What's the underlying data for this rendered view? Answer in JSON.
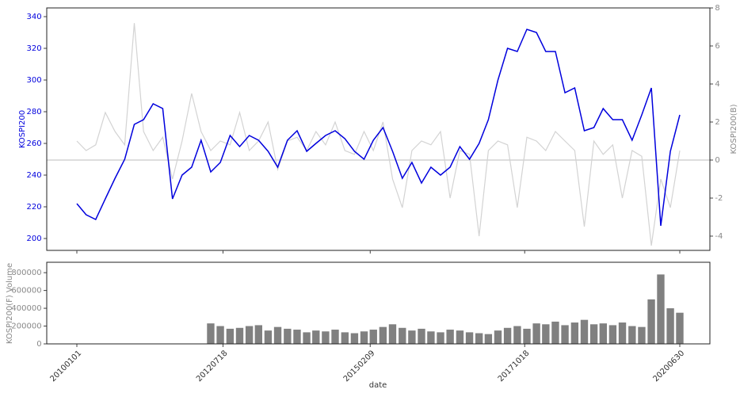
{
  "chart_data": [
    {
      "type": "line",
      "y_label": "KOSPI200",
      "y2_label": "KOSPI200(B)",
      "x": [
        "20100101",
        "20100301",
        "20100501",
        "20100701",
        "20100901",
        "20101101",
        "20110101",
        "20110301",
        "20110501",
        "20110701",
        "20110901",
        "20111101",
        "20120101",
        "20120301",
        "20120501",
        "20120701",
        "20120901",
        "20121101",
        "20130101",
        "20130301",
        "20130501",
        "20130701",
        "20130901",
        "20131101",
        "20140101",
        "20140301",
        "20140501",
        "20140701",
        "20140901",
        "20141101",
        "20150101",
        "20150301",
        "20150501",
        "20150701",
        "20150901",
        "20151101",
        "20160101",
        "20160301",
        "20160501",
        "20160701",
        "20160901",
        "20161101",
        "20170101",
        "20170301",
        "20170501",
        "20170701",
        "20170901",
        "20171101",
        "20180101",
        "20180301",
        "20180501",
        "20180701",
        "20180901",
        "20181101",
        "20190101",
        "20190301",
        "20190501",
        "20190701",
        "20190901",
        "20191101",
        "20200101",
        "20200301",
        "20200501",
        "20200630"
      ],
      "series": [
        {
          "color": "#0000dd",
          "values": [
            222,
            215,
            212,
            225,
            238,
            250,
            272,
            275,
            285,
            282,
            225,
            240,
            245,
            262,
            242,
            248,
            265,
            258,
            265,
            262,
            255,
            245,
            262,
            268,
            255,
            260,
            265,
            268,
            263,
            255,
            250,
            262,
            270,
            255,
            238,
            248,
            235,
            245,
            240,
            245,
            258,
            250,
            260,
            275,
            300,
            320,
            318,
            332,
            330,
            318,
            318,
            292,
            295,
            268,
            270,
            282,
            275,
            275,
            262,
            278,
            295,
            208,
            255,
            278
          ]
        },
        {
          "color": "#d3d3d3",
          "axis": "y2",
          "values": [
            1.0,
            0.5,
            0.8,
            2.5,
            1.5,
            0.8,
            7.2,
            1.5,
            0.5,
            1.2,
            -1.0,
            1.0,
            3.5,
            1.5,
            0.5,
            1.0,
            0.8,
            2.5,
            0.5,
            1.0,
            2.0,
            -0.5,
            1.0,
            1.2,
            0.5,
            1.5,
            0.8,
            2.0,
            0.5,
            0.3,
            1.5,
            0.5,
            2.0,
            -1.0,
            -2.5,
            0.5,
            1.0,
            0.8,
            1.5,
            -2.0,
            0.5,
            0.3,
            -4.0,
            0.5,
            1.0,
            0.8,
            -2.5,
            1.2,
            1.0,
            0.5,
            1.5,
            1.0,
            0.5,
            -3.5,
            1.0,
            0.3,
            0.8,
            -2.0,
            0.5,
            0.2,
            -4.5,
            -1.0,
            -2.5,
            0.5
          ]
        }
      ],
      "ylim": [
        192.5,
        345.5
      ],
      "yticks": [
        200,
        220,
        240,
        260,
        280,
        300,
        320,
        340
      ],
      "y2lim": [
        -4.75,
        8
      ],
      "y2ticks": [
        -4,
        -2,
        0,
        2,
        4,
        6,
        8
      ],
      "y2_refline": 0
    },
    {
      "type": "bar",
      "y_label": "KOSPI200(F) Volume",
      "x_label": "date",
      "x": [
        "20100101",
        "20100301",
        "20100501",
        "20100701",
        "20100901",
        "20101101",
        "20110101",
        "20110301",
        "20110501",
        "20110701",
        "20110901",
        "20111101",
        "20120101",
        "20120301",
        "20120501",
        "20120701",
        "20120901",
        "20121101",
        "20130101",
        "20130301",
        "20130501",
        "20130701",
        "20130901",
        "20131101",
        "20140101",
        "20140301",
        "20140501",
        "20140701",
        "20140901",
        "20141101",
        "20150101",
        "20150301",
        "20150501",
        "20150701",
        "20150901",
        "20151101",
        "20160101",
        "20160301",
        "20160501",
        "20160701",
        "20160901",
        "20161101",
        "20170101",
        "20170301",
        "20170501",
        "20170701",
        "20170901",
        "20171101",
        "20180101",
        "20180301",
        "20180501",
        "20180701",
        "20180901",
        "20181101",
        "20190101",
        "20190301",
        "20190501",
        "20190701",
        "20190901",
        "20191101",
        "20200101",
        "20200301",
        "20200501",
        "20200630"
      ],
      "values": [
        null,
        null,
        null,
        null,
        null,
        null,
        null,
        null,
        null,
        null,
        null,
        null,
        null,
        null,
        230000,
        200000,
        170000,
        180000,
        200000,
        210000,
        150000,
        190000,
        170000,
        160000,
        130000,
        150000,
        140000,
        160000,
        130000,
        120000,
        140000,
        160000,
        190000,
        220000,
        180000,
        150000,
        170000,
        140000,
        130000,
        160000,
        150000,
        130000,
        120000,
        110000,
        150000,
        180000,
        200000,
        170000,
        230000,
        220000,
        250000,
        210000,
        240000,
        270000,
        220000,
        230000,
        210000,
        240000,
        200000,
        190000,
        500000,
        780000,
        400000,
        350000
      ],
      "color": "#808080",
      "ylim": [
        0,
        917000
      ],
      "yticks": [
        0,
        200000,
        400000,
        600000,
        800000
      ],
      "xticks": [
        "20100101",
        "20120718",
        "20150209",
        "20171018",
        "20200630"
      ]
    }
  ]
}
